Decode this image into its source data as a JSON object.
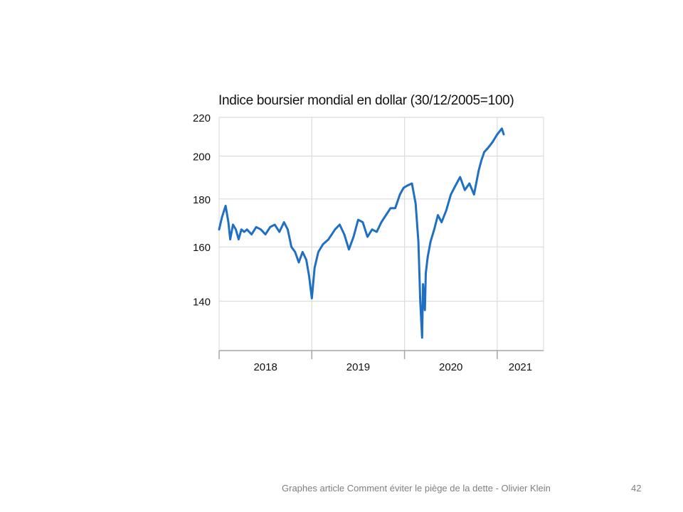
{
  "slide": {
    "footer": "Graphes article Comment  éviter le piège de la dette - Olivier Klein",
    "page_number": "42"
  },
  "chart_data": {
    "type": "line",
    "title": "Indice boursier mondial en dollar (30/12/2005=100)",
    "xlabel": "",
    "ylabel": "",
    "y_scale": "log",
    "yticks": [
      140,
      160,
      180,
      200,
      220
    ],
    "ylim": [
      124,
      220
    ],
    "xlim": [
      2018.0,
      2021.5
    ],
    "x_tick_labels": [
      "2018",
      "2019",
      "2020",
      "2021"
    ],
    "grid": true,
    "series": [
      {
        "color": "#1f6fc5",
        "x": [
          2018.0,
          2018.03,
          2018.07,
          2018.1,
          2018.12,
          2018.15,
          2018.18,
          2018.21,
          2018.24,
          2018.27,
          2018.3,
          2018.35,
          2018.4,
          2018.45,
          2018.5,
          2018.55,
          2018.6,
          2018.65,
          2018.7,
          2018.74,
          2018.78,
          2018.82,
          2018.86,
          2018.9,
          2018.94,
          2018.97,
          2019.0,
          2019.03,
          2019.07,
          2019.12,
          2019.18,
          2019.25,
          2019.3,
          2019.35,
          2019.4,
          2019.45,
          2019.5,
          2019.55,
          2019.6,
          2019.65,
          2019.7,
          2019.75,
          2019.8,
          2019.85,
          2019.9,
          2019.95,
          2019.99,
          2020.03,
          2020.08,
          2020.12,
          2020.15,
          2020.17,
          2020.19,
          2020.2,
          2020.22,
          2020.23,
          2020.25,
          2020.28,
          2020.32,
          2020.36,
          2020.4,
          2020.45,
          2020.5,
          2020.55,
          2020.6,
          2020.65,
          2020.7,
          2020.75,
          2020.8,
          2020.83,
          2020.86,
          2020.9,
          2020.95,
          2021.0,
          2021.05,
          2021.07
        ],
        "values": [
          167,
          172,
          177,
          170,
          163,
          169,
          167,
          163,
          167,
          166,
          167,
          165,
          168,
          167,
          165,
          168,
          169,
          166,
          170,
          167,
          160,
          158,
          154,
          158,
          155,
          149,
          141,
          152,
          158,
          161,
          163,
          167,
          169,
          165,
          159,
          164,
          171,
          170,
          164,
          167,
          166,
          170,
          173,
          176,
          176,
          182,
          185,
          186,
          187,
          178,
          162,
          140,
          128,
          146,
          137,
          150,
          156,
          162,
          167,
          173,
          170,
          175,
          182,
          186,
          190,
          184,
          187,
          182,
          193,
          198,
          202,
          204,
          207,
          211,
          214,
          211
        ]
      }
    ]
  }
}
